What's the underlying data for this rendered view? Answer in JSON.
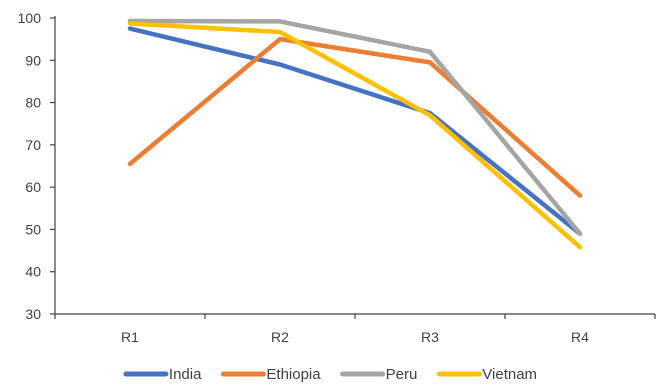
{
  "chart_data": {
    "type": "line",
    "title": "",
    "xlabel": "",
    "ylabel": "",
    "categories": [
      "R1",
      "R2",
      "R3",
      "R4"
    ],
    "ylim": [
      30,
      100
    ],
    "yticks": [
      30,
      40,
      50,
      60,
      70,
      80,
      90,
      100
    ],
    "grid": false,
    "legend_position": "bottom",
    "series": [
      {
        "name": "India",
        "color": "#4472C4",
        "values": [
          97.5,
          89,
          77.5,
          49
        ]
      },
      {
        "name": "Ethiopia",
        "color": "#ED7D31",
        "values": [
          65.5,
          95,
          89.5,
          58
        ]
      },
      {
        "name": "Peru",
        "color": "#A5A5A5",
        "values": [
          99.3,
          99.2,
          92,
          49
        ]
      },
      {
        "name": "Vietnam",
        "color": "#FFC000",
        "values": [
          98.7,
          96.7,
          77,
          45.8
        ]
      }
    ]
  }
}
